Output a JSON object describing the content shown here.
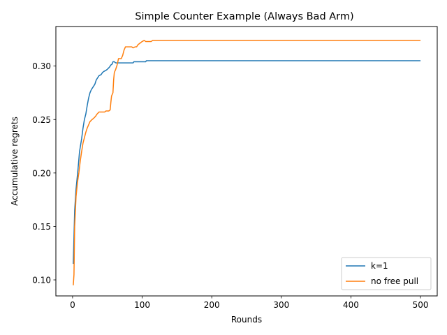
{
  "chart_data": {
    "type": "line",
    "title": "Simple Counter Example (Always Bad Arm)",
    "xlabel": "Rounds",
    "ylabel": "Accumulative regrets",
    "xlim": [
      -24,
      524
    ],
    "ylim": [
      0.085,
      0.337
    ],
    "xticks": [
      0,
      100,
      200,
      300,
      400,
      500
    ],
    "yticks": [
      0.1,
      0.15,
      0.2,
      0.25,
      0.3
    ],
    "ytick_labels": [
      "0.10",
      "0.15",
      "0.20",
      "0.25",
      "0.30"
    ],
    "grid": false,
    "legend": "lower-right",
    "series": [
      {
        "name": "k=1",
        "color": "#1f77b4",
        "points": [
          [
            1,
            0.115
          ],
          [
            3,
            0.165
          ],
          [
            5,
            0.185
          ],
          [
            8,
            0.205
          ],
          [
            10,
            0.22
          ],
          [
            13,
            0.232
          ],
          [
            15,
            0.242
          ],
          [
            17,
            0.25
          ],
          [
            19,
            0.255
          ],
          [
            21,
            0.263
          ],
          [
            23,
            0.27
          ],
          [
            25,
            0.275
          ],
          [
            27,
            0.278
          ],
          [
            30,
            0.281
          ],
          [
            32,
            0.283
          ],
          [
            34,
            0.287
          ],
          [
            36,
            0.289
          ],
          [
            38,
            0.291
          ],
          [
            41,
            0.292
          ],
          [
            43,
            0.294
          ],
          [
            45,
            0.295
          ],
          [
            48,
            0.296
          ],
          [
            50,
            0.297
          ],
          [
            53,
            0.299
          ],
          [
            55,
            0.301
          ],
          [
            57,
            0.302
          ],
          [
            58,
            0.304
          ],
          [
            60,
            0.304
          ],
          [
            62,
            0.303
          ],
          [
            70,
            0.303
          ],
          [
            80,
            0.303
          ],
          [
            87,
            0.303
          ],
          [
            88,
            0.304
          ],
          [
            100,
            0.304
          ],
          [
            105,
            0.304
          ],
          [
            106,
            0.305
          ],
          [
            150,
            0.305
          ],
          [
            200,
            0.305
          ],
          [
            300,
            0.305
          ],
          [
            400,
            0.305
          ],
          [
            500,
            0.305
          ]
        ]
      },
      {
        "name": "no free pull",
        "color": "#ff7f0e",
        "points": [
          [
            1,
            0.095
          ],
          [
            2,
            0.105
          ],
          [
            3,
            0.15
          ],
          [
            5,
            0.178
          ],
          [
            7,
            0.191
          ],
          [
            9,
            0.2
          ],
          [
            11,
            0.211
          ],
          [
            13,
            0.22
          ],
          [
            15,
            0.228
          ],
          [
            17,
            0.233
          ],
          [
            19,
            0.238
          ],
          [
            21,
            0.242
          ],
          [
            23,
            0.245
          ],
          [
            25,
            0.248
          ],
          [
            28,
            0.25
          ],
          [
            30,
            0.251
          ],
          [
            33,
            0.253
          ],
          [
            35,
            0.255
          ],
          [
            38,
            0.257
          ],
          [
            42,
            0.257
          ],
          [
            46,
            0.257
          ],
          [
            48,
            0.258
          ],
          [
            52,
            0.258
          ],
          [
            54,
            0.259
          ],
          [
            55,
            0.266
          ],
          [
            56,
            0.272
          ],
          [
            58,
            0.275
          ],
          [
            59,
            0.287
          ],
          [
            60,
            0.294
          ],
          [
            62,
            0.297
          ],
          [
            64,
            0.301
          ],
          [
            66,
            0.307
          ],
          [
            70,
            0.307
          ],
          [
            72,
            0.31
          ],
          [
            74,
            0.315
          ],
          [
            76,
            0.318
          ],
          [
            80,
            0.318
          ],
          [
            85,
            0.318
          ],
          [
            87,
            0.317
          ],
          [
            90,
            0.318
          ],
          [
            92,
            0.318
          ],
          [
            94,
            0.32
          ],
          [
            96,
            0.321
          ],
          [
            98,
            0.322
          ],
          [
            100,
            0.323
          ],
          [
            103,
            0.324
          ],
          [
            105,
            0.323
          ],
          [
            110,
            0.323
          ],
          [
            113,
            0.323
          ],
          [
            115,
            0.324
          ],
          [
            130,
            0.324
          ],
          [
            200,
            0.324
          ],
          [
            300,
            0.324
          ],
          [
            400,
            0.324
          ],
          [
            500,
            0.324
          ]
        ]
      }
    ]
  }
}
